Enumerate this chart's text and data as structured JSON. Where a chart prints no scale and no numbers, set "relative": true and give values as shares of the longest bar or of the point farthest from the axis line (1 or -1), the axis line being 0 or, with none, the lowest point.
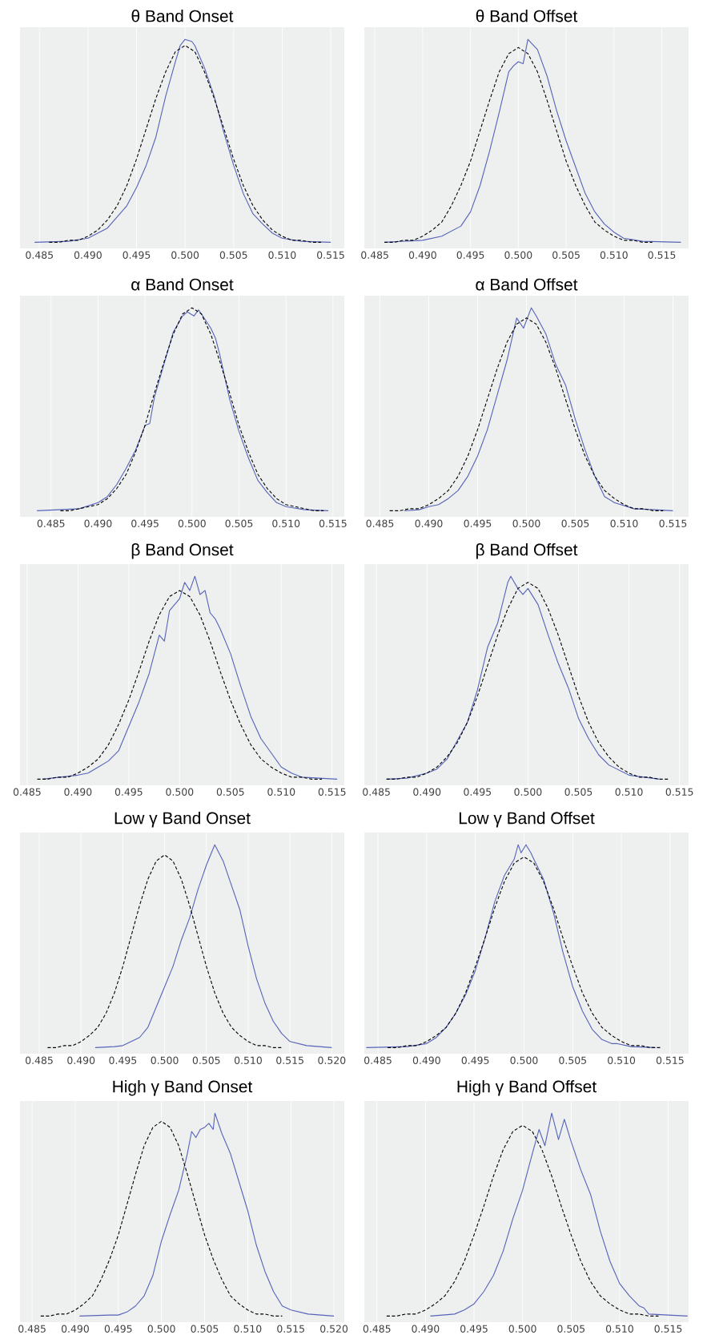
{
  "chart_data": [
    {
      "type": "line",
      "title": "θ Band Onset",
      "relative": true,
      "grid": "x",
      "tick_labels": "x",
      "xlim": [
        0.483,
        0.5164
      ],
      "xticks": [
        {
          "value": 0.485,
          "label": "0.485"
        },
        {
          "value": 0.49,
          "label": "0.490"
        },
        {
          "value": 0.495,
          "label": "0.495"
        },
        {
          "value": 0.5,
          "label": "0.500"
        },
        {
          "value": 0.505,
          "label": "0.505"
        },
        {
          "value": 0.51,
          "label": "0.510"
        },
        {
          "value": 0.515,
          "label": "0.515"
        }
      ],
      "series": [
        {
          "color": "#5663b8",
          "x": [
            0.4845,
            0.488,
            0.49,
            0.492,
            0.494,
            0.495,
            0.496,
            0.497,
            0.498,
            0.499,
            0.4995,
            0.5,
            0.5007,
            0.501,
            0.502,
            0.503,
            0.504,
            0.505,
            0.506,
            0.507,
            0.508,
            0.509,
            0.51,
            0.512,
            0.515
          ],
          "values": [
            0,
            0.005,
            0.02,
            0.07,
            0.18,
            0.27,
            0.38,
            0.52,
            0.72,
            0.89,
            0.97,
            1.0,
            0.99,
            0.97,
            0.86,
            0.72,
            0.54,
            0.38,
            0.24,
            0.14,
            0.09,
            0.045,
            0.02,
            0.005,
            0
          ]
        },
        {
          "color": "#000000",
          "line_style": "dashed",
          "x": [
            0.486,
            0.487,
            0.488,
            0.489,
            0.49,
            0.491,
            0.492,
            0.493,
            0.494,
            0.495,
            0.496,
            0.497,
            0.498,
            0.499,
            0.5,
            0.501,
            0.502,
            0.503,
            0.504,
            0.505,
            0.506,
            0.507,
            0.508,
            0.509,
            0.51,
            0.511,
            0.512,
            0.513,
            0.514
          ],
          "values": [
            0,
            0,
            0.01,
            0.01,
            0.03,
            0.06,
            0.11,
            0.18,
            0.28,
            0.41,
            0.56,
            0.71,
            0.84,
            0.94,
            0.97,
            0.94,
            0.84,
            0.71,
            0.56,
            0.41,
            0.28,
            0.18,
            0.11,
            0.06,
            0.03,
            0.01,
            0.01,
            0,
            0
          ]
        }
      ]
    },
    {
      "type": "line",
      "title": "θ Band Offset",
      "relative": true,
      "grid": "x",
      "tick_labels": "x",
      "xlim": [
        0.4839,
        0.5178
      ],
      "xticks": [
        {
          "value": 0.485,
          "label": "0.485"
        },
        {
          "value": 0.49,
          "label": "0.490"
        },
        {
          "value": 0.495,
          "label": "0.495"
        },
        {
          "value": 0.5,
          "label": "0.500"
        },
        {
          "value": 0.505,
          "label": "0.505"
        },
        {
          "value": 0.51,
          "label": "0.510"
        },
        {
          "value": 0.515,
          "label": "0.515"
        }
      ],
      "series": [
        {
          "color": "#5663b8",
          "x": [
            0.486,
            0.49,
            0.492,
            0.494,
            0.495,
            0.496,
            0.497,
            0.498,
            0.499,
            0.4995,
            0.5,
            0.5005,
            0.501,
            0.502,
            0.503,
            0.504,
            0.505,
            0.506,
            0.507,
            0.508,
            0.509,
            0.51,
            0.511,
            0.513,
            0.517
          ],
          "values": [
            0,
            0.01,
            0.03,
            0.08,
            0.15,
            0.28,
            0.45,
            0.64,
            0.84,
            0.87,
            0.89,
            0.88,
            1.0,
            0.95,
            0.82,
            0.65,
            0.5,
            0.37,
            0.24,
            0.15,
            0.09,
            0.05,
            0.02,
            0.005,
            0
          ]
        },
        {
          "color": "#000000",
          "line_style": "dashed",
          "x": [
            0.486,
            0.487,
            0.488,
            0.489,
            0.49,
            0.491,
            0.492,
            0.493,
            0.494,
            0.495,
            0.496,
            0.497,
            0.498,
            0.499,
            0.5,
            0.501,
            0.502,
            0.503,
            0.504,
            0.505,
            0.506,
            0.507,
            0.508,
            0.509,
            0.51,
            0.511,
            0.512,
            0.513,
            0.514
          ],
          "values": [
            0,
            0,
            0.01,
            0.01,
            0.03,
            0.06,
            0.1,
            0.18,
            0.28,
            0.4,
            0.55,
            0.7,
            0.84,
            0.93,
            0.96,
            0.93,
            0.84,
            0.7,
            0.55,
            0.4,
            0.28,
            0.18,
            0.1,
            0.06,
            0.03,
            0.01,
            0.01,
            0,
            0
          ]
        }
      ]
    },
    {
      "type": "line",
      "title": "α Band Onset",
      "relative": true,
      "grid": "x",
      "tick_labels": "x",
      "xlim": [
        0.4817,
        0.5162
      ],
      "xticks": [
        {
          "value": 0.485,
          "label": "0.485"
        },
        {
          "value": 0.49,
          "label": "0.490"
        },
        {
          "value": 0.495,
          "label": "0.495"
        },
        {
          "value": 0.5,
          "label": "0.500"
        },
        {
          "value": 0.505,
          "label": "0.505"
        },
        {
          "value": 0.51,
          "label": "0.510"
        },
        {
          "value": 0.515,
          "label": "0.515"
        }
      ],
      "series": [
        {
          "color": "#5663b8",
          "x": [
            0.4835,
            0.488,
            0.49,
            0.491,
            0.492,
            0.493,
            0.494,
            0.495,
            0.4955,
            0.496,
            0.497,
            0.498,
            0.499,
            0.4995,
            0.5002,
            0.5007,
            0.501,
            0.502,
            0.5025,
            0.503,
            0.504,
            0.505,
            0.506,
            0.507,
            0.508,
            0.509,
            0.51,
            0.512,
            0.5145
          ],
          "values": [
            0,
            0.01,
            0.04,
            0.07,
            0.13,
            0.21,
            0.3,
            0.42,
            0.43,
            0.56,
            0.72,
            0.88,
            0.96,
            0.98,
            0.96,
            0.99,
            0.97,
            0.9,
            0.85,
            0.76,
            0.55,
            0.39,
            0.26,
            0.15,
            0.09,
            0.04,
            0.02,
            0.005,
            0
          ]
        },
        {
          "color": "#000000",
          "line_style": "dashed",
          "x": [
            0.486,
            0.487,
            0.488,
            0.489,
            0.49,
            0.491,
            0.492,
            0.493,
            0.494,
            0.495,
            0.496,
            0.497,
            0.498,
            0.499,
            0.5,
            0.501,
            0.502,
            0.503,
            0.504,
            0.505,
            0.506,
            0.507,
            0.508,
            0.509,
            0.51,
            0.511,
            0.512,
            0.513,
            0.514
          ],
          "values": [
            0,
            0,
            0.01,
            0.02,
            0.03,
            0.06,
            0.11,
            0.18,
            0.29,
            0.42,
            0.58,
            0.73,
            0.87,
            0.97,
            1,
            0.97,
            0.87,
            0.73,
            0.58,
            0.42,
            0.29,
            0.18,
            0.11,
            0.06,
            0.03,
            0.02,
            0.01,
            0,
            0
          ]
        }
      ]
    },
    {
      "type": "line",
      "title": "α Band Offset",
      "relative": true,
      "grid": "x",
      "tick_labels": "x",
      "xlim": [
        0.4834,
        0.5166
      ],
      "xticks": [
        {
          "value": 0.485,
          "label": "0.485"
        },
        {
          "value": 0.49,
          "label": "0.490"
        },
        {
          "value": 0.495,
          "label": "0.495"
        },
        {
          "value": 0.5,
          "label": "0.500"
        },
        {
          "value": 0.505,
          "label": "0.505"
        },
        {
          "value": 0.51,
          "label": "0.510"
        },
        {
          "value": 0.515,
          "label": "0.515"
        }
      ],
      "series": [
        {
          "color": "#5663b8",
          "x": [
            0.4875,
            0.489,
            0.49,
            0.491,
            0.492,
            0.493,
            0.494,
            0.495,
            0.496,
            0.497,
            0.498,
            0.499,
            0.4997,
            0.5005,
            0.501,
            0.502,
            0.503,
            0.504,
            0.505,
            0.506,
            0.507,
            0.508,
            0.509,
            0.511,
            0.515
          ],
          "values": [
            0,
            0.005,
            0.02,
            0.03,
            0.06,
            0.1,
            0.17,
            0.27,
            0.4,
            0.57,
            0.74,
            0.95,
            0.9,
            1.0,
            0.96,
            0.87,
            0.72,
            0.62,
            0.45,
            0.3,
            0.17,
            0.07,
            0.04,
            0.01,
            0
          ]
        },
        {
          "color": "#000000",
          "line_style": "dashed",
          "x": [
            0.486,
            0.487,
            0.488,
            0.489,
            0.49,
            0.491,
            0.492,
            0.493,
            0.494,
            0.495,
            0.496,
            0.497,
            0.498,
            0.499,
            0.5,
            0.501,
            0.502,
            0.503,
            0.504,
            0.505,
            0.506,
            0.507,
            0.508,
            0.509,
            0.51,
            0.511,
            0.512,
            0.513,
            0.514
          ],
          "values": [
            0,
            0,
            0.01,
            0.01,
            0.03,
            0.06,
            0.1,
            0.17,
            0.27,
            0.4,
            0.55,
            0.7,
            0.83,
            0.92,
            0.95,
            0.92,
            0.83,
            0.7,
            0.55,
            0.4,
            0.27,
            0.17,
            0.1,
            0.06,
            0.03,
            0.01,
            0.01,
            0,
            0
          ]
        }
      ]
    },
    {
      "type": "line",
      "title": "β Band Onset",
      "relative": true,
      "grid": "x",
      "tick_labels": "x",
      "xlim": [
        0.4843,
        0.5162
      ],
      "xticks": [
        {
          "value": 0.485,
          "label": "0.485"
        },
        {
          "value": 0.49,
          "label": "0.490"
        },
        {
          "value": 0.495,
          "label": "0.495"
        },
        {
          "value": 0.5,
          "label": "0.500"
        },
        {
          "value": 0.505,
          "label": "0.505"
        },
        {
          "value": 0.51,
          "label": "0.510"
        },
        {
          "value": 0.515,
          "label": "0.515"
        }
      ],
      "series": [
        {
          "color": "#5663b8",
          "x": [
            0.4865,
            0.49,
            0.491,
            0.492,
            0.493,
            0.494,
            0.495,
            0.496,
            0.497,
            0.498,
            0.4985,
            0.499,
            0.4995,
            0.5,
            0.5005,
            0.501,
            0.5015,
            0.502,
            0.5025,
            0.503,
            0.5035,
            0.504,
            0.505,
            0.506,
            0.507,
            0.508,
            0.509,
            0.51,
            0.511,
            0.512,
            0.5155
          ],
          "values": [
            0,
            0.02,
            0.03,
            0.06,
            0.09,
            0.14,
            0.26,
            0.38,
            0.52,
            0.71,
            0.68,
            0.83,
            0.86,
            0.89,
            0.97,
            0.93,
            1.0,
            0.91,
            0.93,
            0.82,
            0.79,
            0.74,
            0.62,
            0.46,
            0.31,
            0.2,
            0.13,
            0.06,
            0.03,
            0.01,
            0
          ]
        },
        {
          "color": "#000000",
          "line_style": "dashed",
          "x": [
            0.486,
            0.487,
            0.488,
            0.489,
            0.49,
            0.491,
            0.492,
            0.493,
            0.494,
            0.495,
            0.496,
            0.497,
            0.498,
            0.499,
            0.5,
            0.501,
            0.502,
            0.503,
            0.504,
            0.505,
            0.506,
            0.507,
            0.508,
            0.509,
            0.51,
            0.511,
            0.512,
            0.513,
            0.514
          ],
          "values": [
            0,
            0,
            0.01,
            0.01,
            0.03,
            0.06,
            0.1,
            0.17,
            0.27,
            0.39,
            0.53,
            0.68,
            0.81,
            0.9,
            0.93,
            0.9,
            0.81,
            0.68,
            0.53,
            0.39,
            0.27,
            0.17,
            0.1,
            0.06,
            0.03,
            0.01,
            0.01,
            0,
            0
          ]
        }
      ]
    },
    {
      "type": "line",
      "title": "β Band Offset",
      "relative": true,
      "grid": "x",
      "tick_labels": "x",
      "xlim": [
        0.4838,
        0.5159
      ],
      "xticks": [
        {
          "value": 0.485,
          "label": "0.485"
        },
        {
          "value": 0.49,
          "label": "0.490"
        },
        {
          "value": 0.495,
          "label": "0.495"
        },
        {
          "value": 0.5,
          "label": "0.500"
        },
        {
          "value": 0.505,
          "label": "0.505"
        },
        {
          "value": 0.51,
          "label": "0.510"
        },
        {
          "value": 0.515,
          "label": "0.515"
        }
      ],
      "series": [
        {
          "color": "#5663b8",
          "x": [
            0.486,
            0.488,
            0.49,
            0.491,
            0.492,
            0.493,
            0.494,
            0.495,
            0.496,
            0.497,
            0.498,
            0.4983,
            0.499,
            0.4995,
            0.5,
            0.501,
            0.502,
            0.503,
            0.504,
            0.505,
            0.506,
            0.507,
            0.508,
            0.51,
            0.513
          ],
          "values": [
            0,
            0.005,
            0.03,
            0.05,
            0.1,
            0.19,
            0.28,
            0.44,
            0.65,
            0.77,
            0.97,
            1.0,
            0.94,
            0.91,
            0.94,
            0.86,
            0.71,
            0.57,
            0.45,
            0.3,
            0.2,
            0.12,
            0.07,
            0.02,
            0
          ]
        },
        {
          "color": "#000000",
          "line_style": "dashed",
          "x": [
            0.486,
            0.487,
            0.488,
            0.489,
            0.49,
            0.491,
            0.492,
            0.493,
            0.494,
            0.495,
            0.496,
            0.497,
            0.498,
            0.499,
            0.5,
            0.501,
            0.502,
            0.503,
            0.504,
            0.505,
            0.506,
            0.507,
            0.508,
            0.509,
            0.51,
            0.511,
            0.512,
            0.513,
            0.514
          ],
          "values": [
            0,
            0,
            0.01,
            0.01,
            0.03,
            0.06,
            0.11,
            0.18,
            0.28,
            0.41,
            0.56,
            0.71,
            0.84,
            0.94,
            0.97,
            0.94,
            0.84,
            0.71,
            0.56,
            0.41,
            0.28,
            0.18,
            0.11,
            0.06,
            0.03,
            0.01,
            0.01,
            0,
            0
          ]
        }
      ]
    },
    {
      "type": "line",
      "title": "Low γ Band Onset",
      "relative": true,
      "grid": "x",
      "tick_labels": "x",
      "xlim": [
        0.4827,
        0.5215
      ],
      "xticks": [
        {
          "value": 0.485,
          "label": "0.485"
        },
        {
          "value": 0.49,
          "label": "0.490"
        },
        {
          "value": 0.495,
          "label": "0.495"
        },
        {
          "value": 0.5,
          "label": "0.500"
        },
        {
          "value": 0.505,
          "label": "0.505"
        },
        {
          "value": 0.51,
          "label": "0.510"
        },
        {
          "value": 0.515,
          "label": "0.515"
        },
        {
          "value": 0.52,
          "label": "0.520"
        }
      ],
      "series": [
        {
          "color": "#5663b8",
          "x": [
            0.4917,
            0.494,
            0.495,
            0.496,
            0.497,
            0.498,
            0.499,
            0.5,
            0.501,
            0.502,
            0.503,
            0.504,
            0.505,
            0.506,
            0.507,
            0.508,
            0.509,
            0.51,
            0.511,
            0.512,
            0.513,
            0.514,
            0.515,
            0.517,
            0.52
          ],
          "values": [
            0,
            0.005,
            0.01,
            0.03,
            0.05,
            0.1,
            0.2,
            0.3,
            0.4,
            0.53,
            0.64,
            0.78,
            0.9,
            1.0,
            0.92,
            0.8,
            0.68,
            0.5,
            0.34,
            0.22,
            0.13,
            0.07,
            0.03,
            0.01,
            0
          ]
        },
        {
          "color": "#000000",
          "line_style": "dashed",
          "x": [
            0.486,
            0.487,
            0.488,
            0.489,
            0.49,
            0.491,
            0.492,
            0.493,
            0.494,
            0.495,
            0.496,
            0.497,
            0.498,
            0.499,
            0.5,
            0.501,
            0.502,
            0.503,
            0.504,
            0.505,
            0.506,
            0.507,
            0.508,
            0.509,
            0.51,
            0.511,
            0.512,
            0.513,
            0.514
          ],
          "values": [
            0,
            0,
            0.01,
            0.01,
            0.03,
            0.06,
            0.1,
            0.17,
            0.27,
            0.4,
            0.55,
            0.7,
            0.83,
            0.92,
            0.95,
            0.92,
            0.83,
            0.7,
            0.55,
            0.4,
            0.27,
            0.17,
            0.1,
            0.06,
            0.03,
            0.01,
            0.01,
            0,
            0
          ]
        }
      ]
    },
    {
      "type": "line",
      "title": "Low γ Band Offset",
      "relative": true,
      "grid": "x",
      "tick_labels": "x",
      "xlim": [
        0.4836,
        0.5169
      ],
      "xticks": [
        {
          "value": 0.485,
          "label": "0.485"
        },
        {
          "value": 0.49,
          "label": "0.490"
        },
        {
          "value": 0.495,
          "label": "0.495"
        },
        {
          "value": 0.5,
          "label": "0.500"
        },
        {
          "value": 0.505,
          "label": "0.505"
        },
        {
          "value": 0.51,
          "label": "0.510"
        },
        {
          "value": 0.515,
          "label": "0.515"
        }
      ],
      "series": [
        {
          "color": "#5663b8",
          "x": [
            0.4838,
            0.488,
            0.49,
            0.491,
            0.492,
            0.493,
            0.494,
            0.495,
            0.496,
            0.497,
            0.498,
            0.499,
            0.4994,
            0.4997,
            0.5002,
            0.5007,
            0.501,
            0.502,
            0.503,
            0.504,
            0.505,
            0.506,
            0.507,
            0.508,
            0.509,
            0.5095,
            0.511,
            0.5135
          ],
          "values": [
            0,
            0.005,
            0.02,
            0.05,
            0.1,
            0.17,
            0.26,
            0.38,
            0.54,
            0.72,
            0.85,
            0.93,
            1.0,
            0.96,
            1.0,
            0.96,
            0.93,
            0.83,
            0.67,
            0.47,
            0.3,
            0.18,
            0.09,
            0.04,
            0.02,
            0.02,
            0.005,
            0
          ]
        },
        {
          "color": "#000000",
          "line_style": "dashed",
          "x": [
            0.486,
            0.487,
            0.488,
            0.489,
            0.49,
            0.491,
            0.492,
            0.493,
            0.494,
            0.495,
            0.496,
            0.497,
            0.498,
            0.499,
            0.5,
            0.501,
            0.502,
            0.503,
            0.504,
            0.505,
            0.506,
            0.507,
            0.508,
            0.509,
            0.51,
            0.511,
            0.512,
            0.513,
            0.514
          ],
          "values": [
            0,
            0,
            0.01,
            0.01,
            0.03,
            0.06,
            0.1,
            0.17,
            0.27,
            0.4,
            0.54,
            0.69,
            0.82,
            0.91,
            0.94,
            0.91,
            0.82,
            0.69,
            0.54,
            0.4,
            0.27,
            0.17,
            0.1,
            0.06,
            0.03,
            0.01,
            0.01,
            0,
            0
          ]
        }
      ]
    },
    {
      "type": "line",
      "title": "High γ Band Onset",
      "relative": true,
      "grid": "x",
      "tick_labels": "x",
      "xlim": [
        0.4836,
        0.5212
      ],
      "xticks": [
        {
          "value": 0.485,
          "label": "0.485"
        },
        {
          "value": 0.49,
          "label": "0.490"
        },
        {
          "value": 0.495,
          "label": "0.495"
        },
        {
          "value": 0.5,
          "label": "0.500"
        },
        {
          "value": 0.505,
          "label": "0.505"
        },
        {
          "value": 0.51,
          "label": "0.510"
        },
        {
          "value": 0.515,
          "label": "0.515"
        },
        {
          "value": 0.52,
          "label": "0.520"
        }
      ],
      "series": [
        {
          "color": "#5663b8",
          "x": [
            0.4905,
            0.494,
            0.495,
            0.496,
            0.497,
            0.498,
            0.499,
            0.5,
            0.501,
            0.502,
            0.503,
            0.5035,
            0.504,
            0.5045,
            0.505,
            0.5055,
            0.506,
            0.5062,
            0.507,
            0.508,
            0.509,
            0.51,
            0.511,
            0.512,
            0.513,
            0.514,
            0.515,
            0.517,
            0.52
          ],
          "values": [
            0,
            0.005,
            0.005,
            0.02,
            0.05,
            0.1,
            0.2,
            0.37,
            0.5,
            0.62,
            0.8,
            0.91,
            0.88,
            0.92,
            0.93,
            0.95,
            0.92,
            1.0,
            0.9,
            0.8,
            0.66,
            0.52,
            0.35,
            0.22,
            0.12,
            0.05,
            0.03,
            0.01,
            0
          ]
        },
        {
          "color": "#000000",
          "line_style": "dashed",
          "x": [
            0.486,
            0.487,
            0.488,
            0.489,
            0.49,
            0.491,
            0.492,
            0.493,
            0.494,
            0.495,
            0.496,
            0.497,
            0.498,
            0.499,
            0.5,
            0.501,
            0.502,
            0.503,
            0.504,
            0.505,
            0.506,
            0.507,
            0.508,
            0.509,
            0.51,
            0.511,
            0.512,
            0.513,
            0.514
          ],
          "values": [
            0,
            0,
            0.01,
            0.01,
            0.03,
            0.06,
            0.1,
            0.18,
            0.28,
            0.4,
            0.55,
            0.7,
            0.84,
            0.93,
            0.96,
            0.93,
            0.84,
            0.7,
            0.55,
            0.4,
            0.28,
            0.18,
            0.1,
            0.06,
            0.03,
            0.01,
            0.01,
            0,
            0
          ]
        }
      ]
    },
    {
      "type": "line",
      "title": "High γ Band Offset",
      "relative": true,
      "grid": "x",
      "tick_labels": "x",
      "xlim": [
        0.4837,
        0.5171
      ],
      "xticks": [
        {
          "value": 0.485,
          "label": "0.485"
        },
        {
          "value": 0.49,
          "label": "0.490"
        },
        {
          "value": 0.495,
          "label": "0.495"
        },
        {
          "value": 0.5,
          "label": "0.500"
        },
        {
          "value": 0.505,
          "label": "0.505"
        },
        {
          "value": 0.51,
          "label": "0.510"
        },
        {
          "value": 0.515,
          "label": "0.515"
        }
      ],
      "series": [
        {
          "color": "#5663b8",
          "x": [
            0.4905,
            0.493,
            0.494,
            0.495,
            0.496,
            0.497,
            0.498,
            0.499,
            0.5,
            0.501,
            0.5017,
            0.5023,
            0.503,
            0.5037,
            0.5043,
            0.505,
            0.506,
            0.507,
            0.508,
            0.509,
            0.51,
            0.511,
            0.512,
            0.5125,
            0.513,
            0.517
          ],
          "values": [
            0,
            0.01,
            0.03,
            0.06,
            0.12,
            0.2,
            0.32,
            0.48,
            0.62,
            0.8,
            0.92,
            0.84,
            1.0,
            0.87,
            0.97,
            0.86,
            0.72,
            0.6,
            0.42,
            0.27,
            0.16,
            0.1,
            0.05,
            0.04,
            0.01,
            0
          ]
        },
        {
          "color": "#000000",
          "line_style": "dashed",
          "x": [
            0.486,
            0.487,
            0.488,
            0.489,
            0.49,
            0.491,
            0.492,
            0.493,
            0.494,
            0.495,
            0.496,
            0.497,
            0.498,
            0.499,
            0.5,
            0.501,
            0.502,
            0.503,
            0.504,
            0.505,
            0.506,
            0.507,
            0.508,
            0.509,
            0.51,
            0.511,
            0.512,
            0.513,
            0.514
          ],
          "values": [
            0,
            0,
            0.01,
            0.01,
            0.03,
            0.06,
            0.1,
            0.17,
            0.27,
            0.4,
            0.54,
            0.69,
            0.82,
            0.91,
            0.94,
            0.91,
            0.82,
            0.69,
            0.54,
            0.4,
            0.27,
            0.17,
            0.1,
            0.06,
            0.03,
            0.01,
            0.01,
            0,
            0
          ]
        }
      ]
    }
  ]
}
